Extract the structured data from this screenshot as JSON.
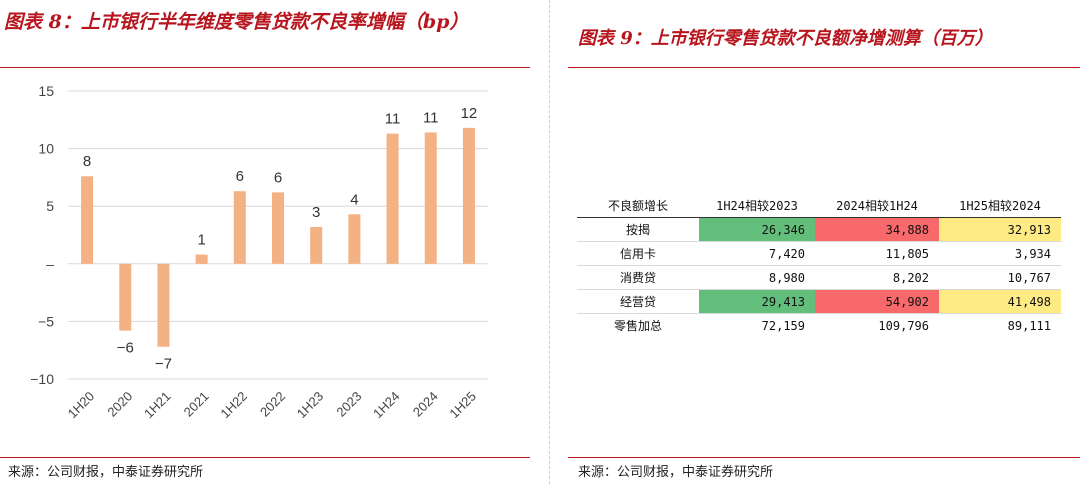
{
  "left": {
    "title": "图表 8：上市银行半年维度零售贷款不良率增幅（bp）",
    "source": "来源：公司财报，中泰证券研究所"
  },
  "right": {
    "title": "图表 9：上市银行零售贷款不良额净增测算（百万）",
    "source": "来源：公司财报，中泰证券研究所"
  },
  "chart_data": {
    "type": "bar",
    "categories": [
      "1H20",
      "2020",
      "1H21",
      "2021",
      "1H22",
      "2022",
      "1H23",
      "2023",
      "1H24",
      "2024",
      "1H25"
    ],
    "values": [
      7.6,
      -5.8,
      -7.2,
      0.8,
      6.3,
      6.2,
      3.2,
      4.3,
      11.3,
      11.4,
      11.8
    ],
    "data_labels": [
      "8",
      "−6",
      "−7",
      "1",
      "6",
      "6",
      "3",
      "4",
      "11",
      "11",
      "12"
    ],
    "ylim": [
      -10,
      15
    ],
    "yticks": [
      15,
      10,
      5,
      0,
      -5,
      -10
    ],
    "ytick_labels": [
      "15",
      "10",
      "5",
      "–",
      "−5",
      "−10"
    ],
    "bar_color": "#f4b183",
    "gridlines": true,
    "legend": "none"
  },
  "table": {
    "columns": [
      "不良额增长",
      "1H24相较2023",
      "2024相较1H24",
      "1H25相较2024"
    ],
    "rows": [
      {
        "label": "按揭",
        "values": [
          "26,346",
          "34,888",
          "32,913"
        ],
        "highlight": [
          "#63be7b",
          "#f8696b",
          "#ffeb84"
        ]
      },
      {
        "label": "信用卡",
        "values": [
          "7,420",
          "11,805",
          "3,934"
        ],
        "highlight": [
          "",
          "",
          ""
        ]
      },
      {
        "label": "消费贷",
        "values": [
          "8,980",
          "8,202",
          "10,767"
        ],
        "highlight": [
          "",
          "",
          ""
        ]
      },
      {
        "label": "经营贷",
        "values": [
          "29,413",
          "54,902",
          "41,498"
        ],
        "highlight": [
          "#63be7b",
          "#f8696b",
          "#ffeb84"
        ]
      },
      {
        "label": "零售加总",
        "values": [
          "72,159",
          "109,796",
          "89,111"
        ],
        "highlight": [
          "",
          "",
          ""
        ]
      }
    ]
  }
}
